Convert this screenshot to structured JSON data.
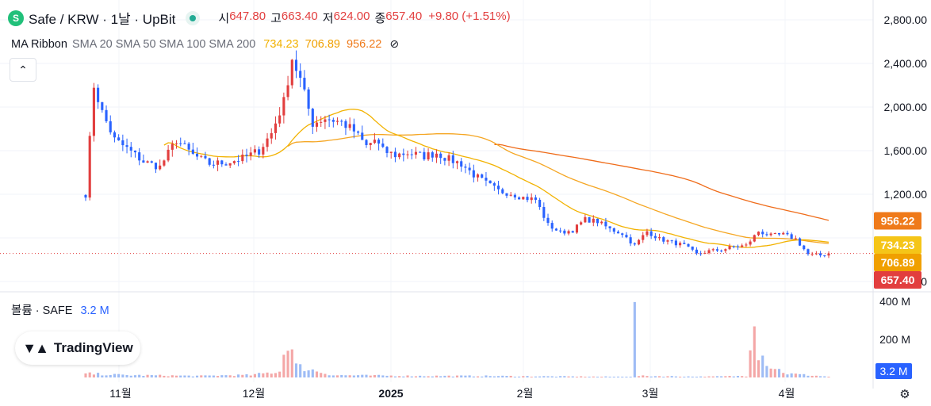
{
  "header": {
    "title": "Safe / KRW · 1날 · UpBit",
    "open_label": "시",
    "open": "647.80",
    "high_label": "고",
    "high": "663.40",
    "low_label": "저",
    "low": "624.00",
    "close_label": "종",
    "close": "657.40",
    "change": "+9.80 (+1.51%)"
  },
  "ma_ribbon": {
    "name": "MA Ribbon",
    "params": "SMA 20 SMA 50 SMA 100 SMA 200",
    "v1": "734.23",
    "v2": "706.89",
    "v3": "956.22",
    "hide_icon": "eye-off-icon"
  },
  "volume_legend": {
    "label": "볼륨 · SAFE",
    "value": "3.2 M"
  },
  "logo_text": "TradingView",
  "colors": {
    "up": "#e23e3e",
    "down": "#2962ff",
    "vol_up": "#f4a7a7",
    "vol_down": "#9ebcf5",
    "ma20": "#f2b200",
    "ma50": "#f0a000",
    "ma100": "#f5a623",
    "ma200": "#ef6c1a"
  },
  "chart_data": {
    "type": "candlestick",
    "price_axis": {
      "min": 400,
      "max": 2800,
      "ticks": [
        "2,800.00",
        "2,400.00",
        "2,000.00",
        "1,600.00",
        "1,200.00",
        "400.00"
      ]
    },
    "volume_axis": {
      "ticks": [
        "400 M",
        "200 M"
      ],
      "last": "3.2 M"
    },
    "x_ticks": [
      "11월",
      "12월",
      "2025",
      "2월",
      "3월",
      "4월"
    ],
    "price_labels": [
      {
        "value": 956.22,
        "text": "956.22",
        "color": "#ef7a1a"
      },
      {
        "value": 734.23,
        "text": "734.23",
        "color": "#f5c518"
      },
      {
        "value": 706.89,
        "text": "706.89",
        "color": "#f0a000"
      },
      {
        "value": 657.4,
        "text": "657.40",
        "color": "#e23e3e"
      }
    ],
    "last_price": 657.4,
    "keypoints": [
      [
        0,
        1200
      ],
      [
        2,
        2200
      ],
      [
        4,
        1950
      ],
      [
        7,
        1700
      ],
      [
        10,
        1620
      ],
      [
        14,
        1500
      ],
      [
        18,
        1450
      ],
      [
        22,
        1700
      ],
      [
        26,
        1560
      ],
      [
        30,
        1480
      ],
      [
        34,
        1490
      ],
      [
        38,
        1530
      ],
      [
        42,
        1600
      ],
      [
        45,
        1760
      ],
      [
        48,
        2050
      ],
      [
        50,
        2450
      ],
      [
        52,
        2250
      ],
      [
        55,
        1850
      ],
      [
        58,
        1900
      ],
      [
        62,
        1860
      ],
      [
        65,
        1780
      ],
      [
        68,
        1640
      ],
      [
        70,
        1700
      ],
      [
        72,
        1600
      ],
      [
        75,
        1560
      ],
      [
        78,
        1580
      ],
      [
        82,
        1550
      ],
      [
        85,
        1580
      ],
      [
        88,
        1520
      ],
      [
        91,
        1480
      ],
      [
        94,
        1380
      ],
      [
        97,
        1300
      ],
      [
        100,
        1230
      ],
      [
        103,
        1210
      ],
      [
        106,
        1170
      ],
      [
        109,
        1150
      ],
      [
        112,
        920
      ],
      [
        115,
        850
      ],
      [
        118,
        870
      ],
      [
        121,
        970
      ],
      [
        124,
        950
      ],
      [
        127,
        880
      ],
      [
        130,
        840
      ],
      [
        133,
        730
      ],
      [
        136,
        860
      ],
      [
        139,
        790
      ],
      [
        142,
        760
      ],
      [
        145,
        730
      ],
      [
        148,
        650
      ],
      [
        151,
        680
      ],
      [
        154,
        690
      ],
      [
        157,
        720
      ],
      [
        160,
        730
      ],
      [
        163,
        860
      ],
      [
        166,
        820
      ],
      [
        169,
        830
      ],
      [
        172,
        790
      ],
      [
        175,
        650
      ],
      [
        178,
        640
      ],
      [
        180,
        657
      ]
    ],
    "volume_keypoints": [
      [
        0,
        0.05
      ],
      [
        5,
        0.04
      ],
      [
        10,
        0.03
      ],
      [
        20,
        0.025
      ],
      [
        28,
        0.02
      ],
      [
        35,
        0.03
      ],
      [
        40,
        0.03
      ],
      [
        47,
        0.08
      ],
      [
        49,
        0.55
      ],
      [
        51,
        0.15
      ],
      [
        60,
        0.03
      ],
      [
        80,
        0.02
      ],
      [
        95,
        0.02
      ],
      [
        110,
        0.015
      ],
      [
        125,
        0.01
      ],
      [
        132,
        0.01
      ],
      [
        133,
        0.78
      ],
      [
        134,
        0.02
      ],
      [
        150,
        0.01
      ],
      [
        160,
        0.02
      ],
      [
        162,
        1.0
      ],
      [
        163,
        0.35
      ],
      [
        166,
        0.15
      ],
      [
        170,
        0.05
      ],
      [
        180,
        0.01
      ]
    ]
  }
}
